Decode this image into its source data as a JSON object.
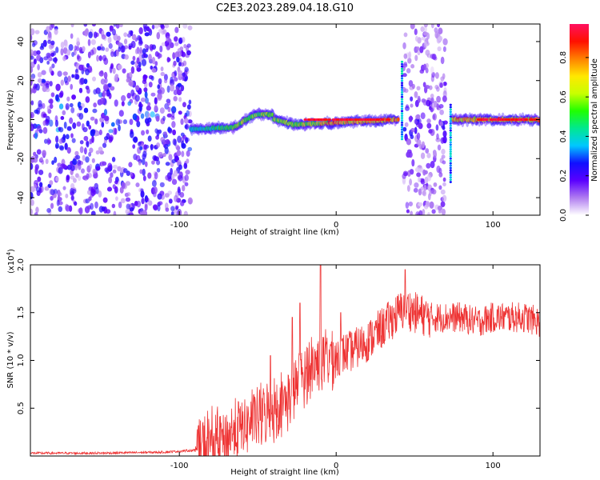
{
  "title": "C2E3.2023.289.04.18.G10",
  "chart_data": [
    {
      "type": "heatmap",
      "title": "C2E3.2023.289.04.18.G10",
      "xlabel": "Height of straight line (km)",
      "ylabel": "Frequency (Hz)",
      "xlim": [
        -195,
        130
      ],
      "ylim": [
        -49,
        49
      ],
      "x_ticks": [
        -100,
        0,
        100
      ],
      "x_tick_labels": [
        "-100",
        "0",
        "100"
      ],
      "y_ticks": [
        -40,
        -20,
        0,
        20,
        40
      ],
      "y_tick_labels": [
        "-40",
        "-20",
        "0",
        "20",
        "40"
      ],
      "colorbar": {
        "label": "Normalized spectral amplitude",
        "range": [
          0,
          0.97
        ],
        "ticks": [
          0.0,
          0.2,
          0.4,
          0.6,
          0.8
        ],
        "tick_labels": [
          "0.0",
          "0.2",
          "0.4",
          "0.6",
          "0.8"
        ],
        "colors": [
          "#ffffff",
          "#b07cf0",
          "#5a00ff",
          "#1010ff",
          "#00c8ff",
          "#00e890",
          "#20ff00",
          "#c8ff00",
          "#ffe800",
          "#ff8000",
          "#ff1000",
          "#ff1060"
        ]
      },
      "regions": [
        {
          "x": [
            -195,
            -93
          ],
          "kind": "broadband noise",
          "amplitude": 0.15
        },
        {
          "x": [
            -93,
            40
          ],
          "kind": "narrow line",
          "center_start": -5,
          "center_end": 0,
          "amplitude": 0.95
        },
        {
          "x": [
            43,
            70
          ],
          "kind": "broadband noise",
          "amplitude": 0.1
        },
        {
          "x": [
            74,
            130
          ],
          "kind": "narrow line",
          "center_start": 0,
          "center_end": 0,
          "amplitude": 0.9
        }
      ]
    },
    {
      "type": "line",
      "xlabel": "Height of straight line (km)",
      "ylabel": "SNR (10 * v/v)",
      "y_multiplier": "(x10",
      "y_multiplier_exp": "4",
      "xlim": [
        -195,
        130
      ],
      "ylim": [
        0,
        2.0
      ],
      "x_ticks": [
        -100,
        0,
        100
      ],
      "x_tick_labels": [
        "-100",
        "0",
        "100"
      ],
      "y_ticks": [
        0.5,
        1.0,
        1.5,
        2.0
      ],
      "y_tick_labels": [
        "0.5",
        "1.0",
        "1.5",
        "2.0"
      ],
      "series": [
        {
          "color": "#ee3333",
          "x": [
            -195,
            -150,
            -110,
            -90,
            -85,
            -80,
            -70,
            -60,
            -50,
            -40,
            -35,
            -30,
            -25,
            -20,
            -15,
            -10,
            -5,
            0,
            10,
            20,
            30,
            40,
            45,
            50,
            60,
            70,
            80,
            90,
            100,
            110,
            120,
            130
          ],
          "y": [
            0.03,
            0.03,
            0.04,
            0.06,
            0.1,
            0.15,
            0.2,
            0.3,
            0.4,
            0.5,
            0.55,
            0.6,
            0.75,
            0.85,
            0.95,
            1.0,
            1.05,
            1.05,
            1.1,
            1.2,
            1.35,
            1.5,
            1.55,
            1.5,
            1.45,
            1.45,
            1.45,
            1.4,
            1.45,
            1.45,
            1.45,
            1.4
          ]
        }
      ],
      "spikes": [
        {
          "x": -42,
          "y": 1.05
        },
        {
          "x": -28,
          "y": 1.45
        },
        {
          "x": -23,
          "y": 1.6
        },
        {
          "x": -10,
          "y": 2.0
        },
        {
          "x": 3,
          "y": 1.5
        },
        {
          "x": 44,
          "y": 1.95
        }
      ]
    }
  ]
}
